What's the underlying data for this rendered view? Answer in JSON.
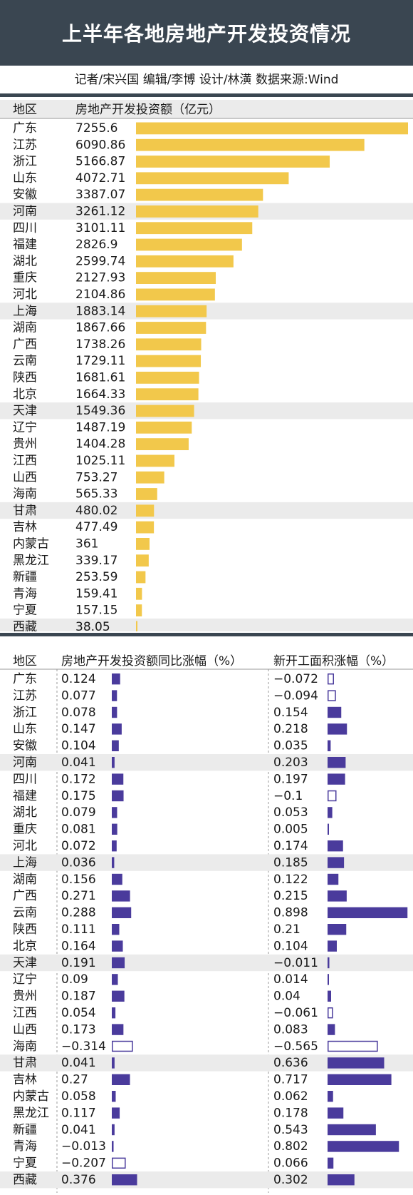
{
  "header": {
    "title": "上半年各地房地产开发投资情况",
    "credits": "记者/宋兴国   编辑/李博   设计/林潢   数据来源:Wind"
  },
  "colors": {
    "header_bg": "#3a4651",
    "bar_yellow": "#f2c84b",
    "bar_purple": "#4a3b9c",
    "row_shade": "#ebebeb"
  },
  "chart_data": [
    {
      "type": "bar",
      "orientation": "horizontal",
      "region_header": "地区",
      "value_header": "房地产开发投资额（亿元）",
      "unit": "亿元",
      "categories": [
        "广东",
        "江苏",
        "浙江",
        "山东",
        "安徽",
        "河南",
        "四川",
        "福建",
        "湖北",
        "重庆",
        "河北",
        "上海",
        "湖南",
        "广西",
        "云南",
        "陕西",
        "北京",
        "天津",
        "辽宁",
        "贵州",
        "江西",
        "山西",
        "海南",
        "甘肃",
        "吉林",
        "内蒙古",
        "黑龙江",
        "新疆",
        "青海",
        "宁夏",
        "西藏"
      ],
      "values": [
        7255.6,
        6090.86,
        5166.87,
        4072.71,
        3387.07,
        3261.12,
        3101.11,
        2826.9,
        2599.74,
        2127.93,
        2104.86,
        1883.14,
        1867.66,
        1738.26,
        1729.11,
        1681.61,
        1664.33,
        1549.36,
        1487.19,
        1404.28,
        1025.11,
        753.27,
        565.33,
        480.02,
        477.49,
        361,
        339.17,
        253.59,
        159.41,
        157.15,
        38.05
      ],
      "labels": [
        "7255.6",
        "6090.86",
        "5166.87",
        "4072.71",
        "3387.07",
        "3261.12",
        "3101.11",
        "2826.9",
        "2599.74",
        "2127.93",
        "2104.86",
        "1883.14",
        "1867.66",
        "1738.26",
        "1729.11",
        "1681.61",
        "1664.33",
        "1549.36",
        "1487.19",
        "1404.28",
        "1025.11",
        "753.27",
        "565.33",
        "480.02",
        "477.49",
        "361",
        "339.17",
        "253.59",
        "159.41",
        "157.15",
        "38.05"
      ],
      "shaded_rows": [
        "河南",
        "上海",
        "天津",
        "甘肃",
        "西藏"
      ]
    },
    {
      "type": "bar",
      "orientation": "horizontal",
      "region_header": "地区",
      "categories": [
        "广东",
        "江苏",
        "浙江",
        "山东",
        "安徽",
        "河南",
        "四川",
        "福建",
        "湖北",
        "重庆",
        "河北",
        "上海",
        "湖南",
        "广西",
        "云南",
        "陕西",
        "北京",
        "天津",
        "辽宁",
        "贵州",
        "江西",
        "山西",
        "海南",
        "甘肃",
        "吉林",
        "内蒙古",
        "黑龙江",
        "新疆",
        "青海",
        "宁夏",
        "西藏"
      ],
      "series": [
        {
          "name": "房地产开发投资额同比涨幅（%）",
          "values": [
            0.124,
            0.077,
            0.078,
            0.147,
            0.104,
            0.041,
            0.172,
            0.175,
            0.079,
            0.081,
            0.072,
            0.036,
            0.156,
            0.271,
            0.288,
            0.111,
            0.164,
            0.191,
            0.09,
            0.187,
            0.054,
            0.173,
            -0.314,
            0.041,
            0.27,
            0.058,
            0.117,
            0.041,
            -0.013,
            -0.207,
            0.376
          ],
          "labels": [
            "0.124",
            "0.077",
            "0.078",
            "0.147",
            "0.104",
            "0.041",
            "0.172",
            "0.175",
            "0.079",
            "0.081",
            "0.072",
            "0.036",
            "0.156",
            "0.271",
            "0.288",
            "0.111",
            "0.164",
            "0.191",
            "0.09",
            "0.187",
            "0.054",
            "0.173",
            "−0.314",
            "0.041",
            "0.27",
            "0.058",
            "0.117",
            "0.041",
            "−0.013",
            "−0.207",
            "0.376"
          ]
        },
        {
          "name": "新开工面积涨幅（%）",
          "values": [
            -0.072,
            -0.094,
            0.154,
            0.218,
            0.035,
            0.203,
            0.197,
            -0.1,
            0.053,
            0.005,
            0.174,
            0.185,
            0.122,
            0.215,
            0.898,
            0.21,
            0.104,
            -0.011,
            0.014,
            0.04,
            -0.061,
            0.083,
            -0.565,
            0.636,
            0.717,
            0.062,
            0.178,
            0.543,
            0.802,
            0.066,
            0.302
          ],
          "labels": [
            "−0.072",
            "−0.094",
            "0.154",
            "0.218",
            "0.035",
            "0.203",
            "0.197",
            "−0.1",
            "0.053",
            "0.005",
            "0.174",
            "0.185",
            "0.122",
            "0.215",
            "0.898",
            "0.21",
            "0.104",
            "−0.011",
            "0.014",
            "0.04",
            "−0.061",
            "0.083",
            "−0.565",
            "0.636",
            "0.717",
            "0.062",
            "0.178",
            "0.543",
            "0.802",
            "0.066",
            "0.302"
          ]
        }
      ],
      "note": "negative values drawn as outlined (hollow) bars",
      "shaded_rows": [
        "河南",
        "上海",
        "天津",
        "甘肃",
        "西藏"
      ]
    }
  ]
}
